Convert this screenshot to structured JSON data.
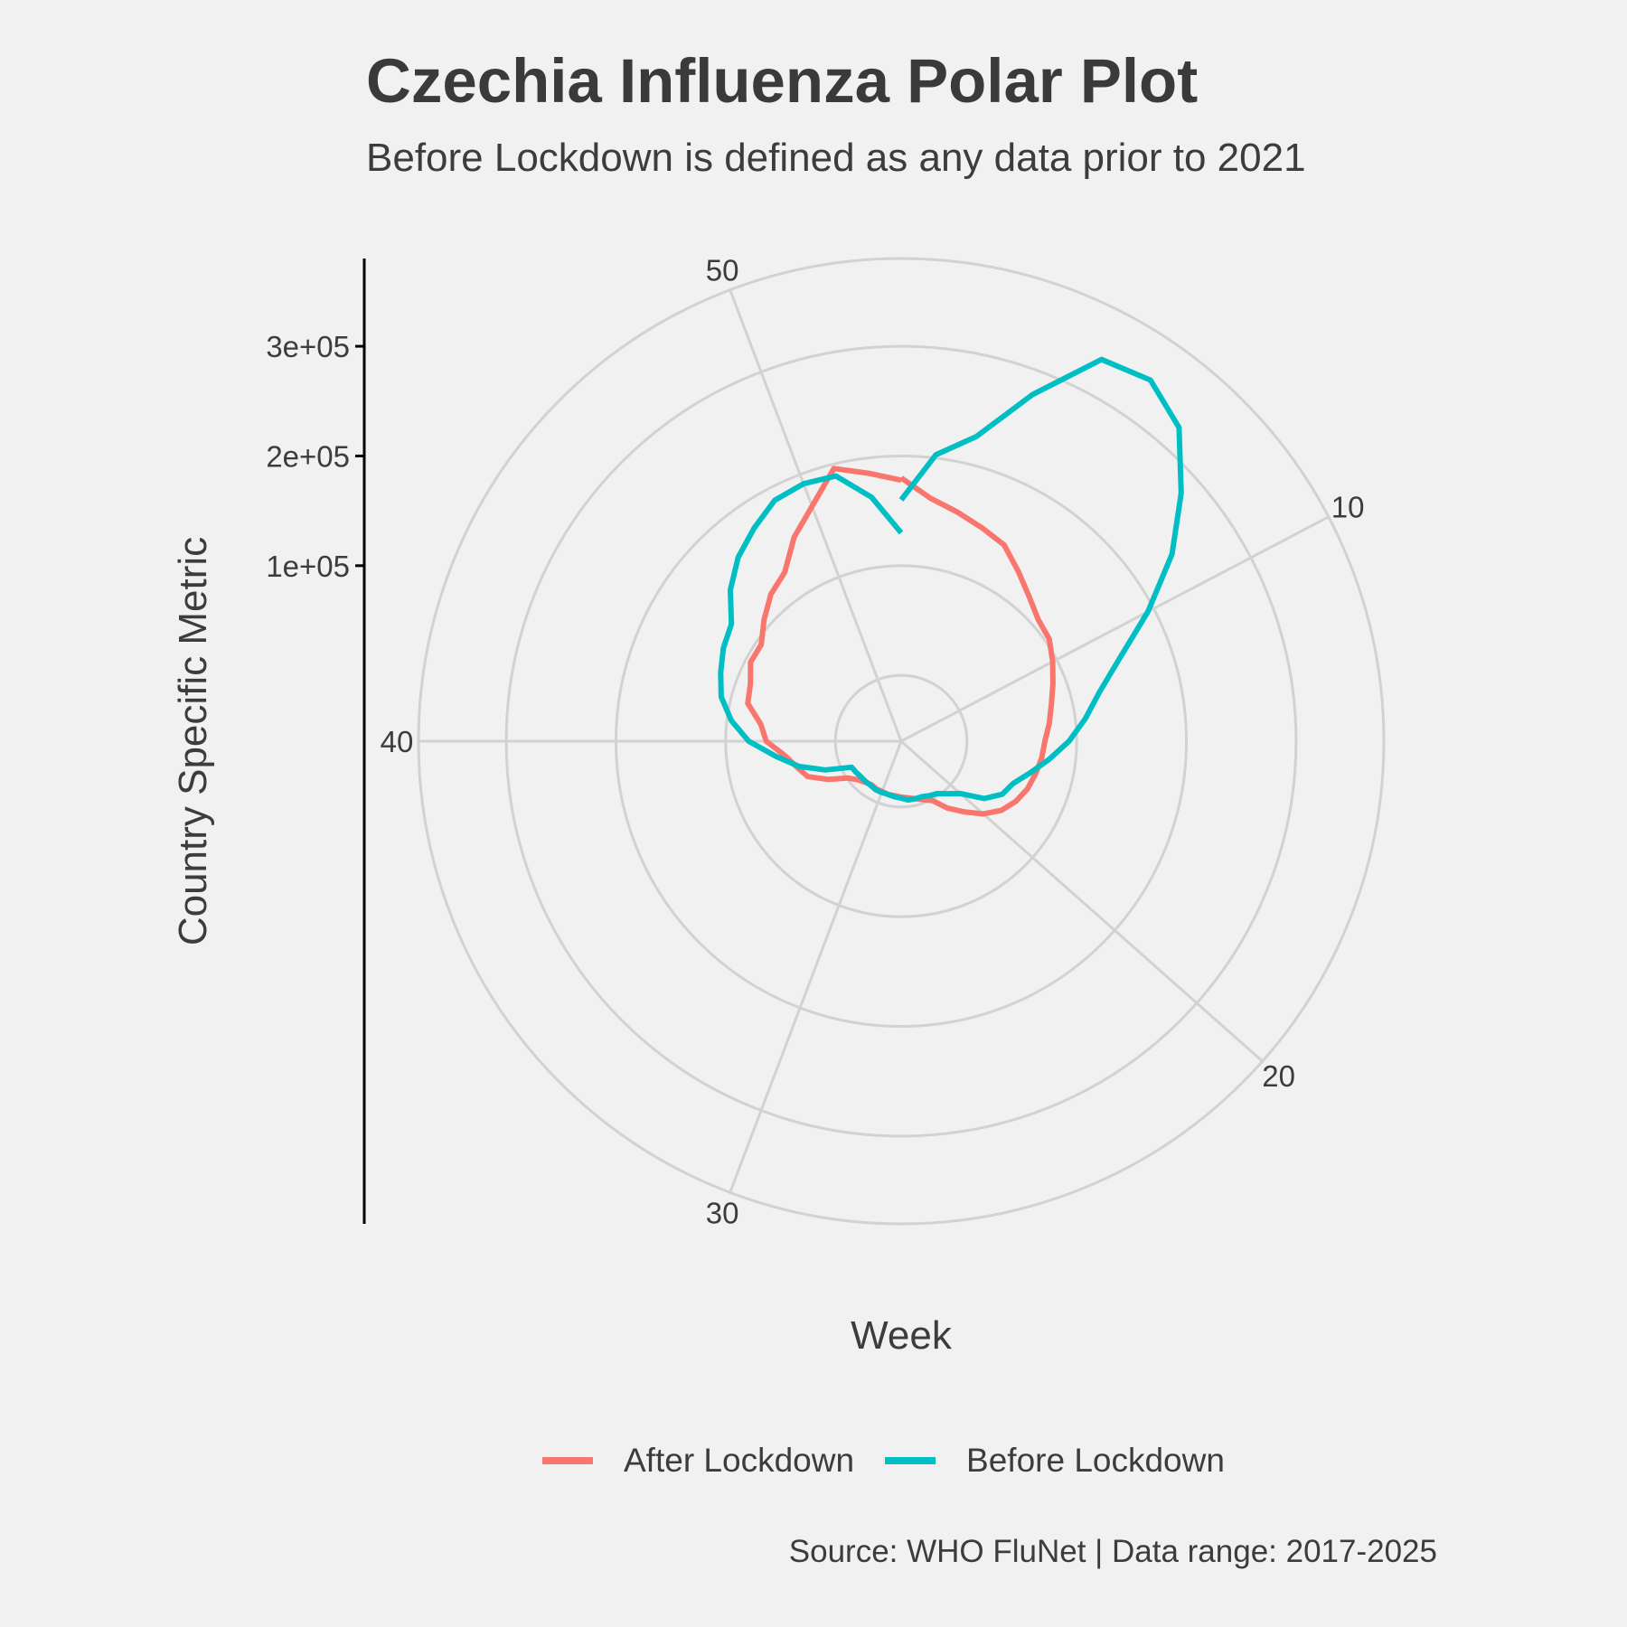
{
  "chart_data": {
    "type": "line",
    "coord": "polar",
    "title": "Czechia Influenza Polar Plot",
    "subtitle": "Before Lockdown is defined as any data prior to 2021",
    "xlabel": "Week",
    "ylabel": "Country Specific Metric",
    "caption": "Source: WHO FluNet | Data range: 2017-2025",
    "x_ticks": [
      10,
      20,
      30,
      40,
      50
    ],
    "x_tick_labels": [
      "10",
      "20",
      "30",
      "40",
      "50"
    ],
    "xlim": [
      1,
      53
    ],
    "ylim": [
      -60000,
      380000
    ],
    "y_ticks": [
      100000,
      200000,
      300000
    ],
    "y_tick_labels": [
      "1e+05",
      "2e+05",
      "3e+05"
    ],
    "grid": true,
    "legend_position": "bottom",
    "series": [
      {
        "name": "After Lockdown",
        "color": "#F8766D",
        "x": [
          1,
          2,
          3,
          4,
          5,
          6,
          7,
          8,
          9,
          10,
          11,
          12,
          13,
          14,
          15,
          16,
          17,
          18,
          19,
          20,
          21,
          22,
          23,
          24,
          25,
          26,
          27,
          28,
          29,
          30,
          31,
          32,
          33,
          34,
          35,
          36,
          37,
          38,
          39,
          40,
          41,
          42,
          43,
          44,
          45,
          46,
          47,
          48,
          49,
          50,
          51,
          52,
          53
        ],
        "y": [
          180000,
          163000,
          155000,
          148000,
          142000,
          128000,
          116000,
          107000,
          104000,
          96000,
          88000,
          81000,
          76000,
          71000,
          69000,
          66000,
          63000,
          58000,
          51000,
          40000,
          26000,
          14000,
          1000,
          -3000,
          -6000,
          -8000,
          -9000,
          -10000,
          -10000,
          -11000,
          -11000,
          -12000,
          -10000,
          -7000,
          -1000,
          15000,
          31000,
          38000,
          47000,
          63000,
          69000,
          84000,
          87000,
          95000,
          95000,
          107000,
          119000,
          127000,
          150000,
          169000,
          196000,
          186000,
          178000
        ]
      },
      {
        "name": "Before Lockdown",
        "color": "#00BFC4",
        "x": [
          1,
          2,
          3,
          4,
          5,
          6,
          7,
          8,
          9,
          10,
          11,
          12,
          13,
          14,
          15,
          16,
          17,
          18,
          19,
          20,
          21,
          22,
          23,
          24,
          25,
          26,
          27,
          28,
          29,
          30,
          31,
          32,
          33,
          34,
          35,
          36,
          37,
          38,
          39,
          40,
          41,
          42,
          43,
          44,
          45,
          46,
          47,
          48,
          49,
          50,
          51,
          52,
          53
        ],
        "y": [
          160000,
          203000,
          226000,
          278000,
          333000,
          340000,
          322000,
          281000,
          240000,
          194000,
          153000,
          126000,
          109000,
          93000,
          76000,
          61000,
          49000,
          44000,
          32000,
          12000,
          4000,
          -2000,
          -4000,
          -6000,
          -6000,
          -6000,
          -8000,
          -9000,
          -10000,
          -10000,
          -10000,
          -11000,
          -11000,
          -11000,
          -10000,
          -9000,
          14000,
          36000,
          55000,
          79000,
          96000,
          109000,
          116000,
          123000,
          128000,
          148000,
          164000,
          176000,
          188000,
          191000,
          189000,
          164000,
          130000
        ]
      }
    ]
  }
}
